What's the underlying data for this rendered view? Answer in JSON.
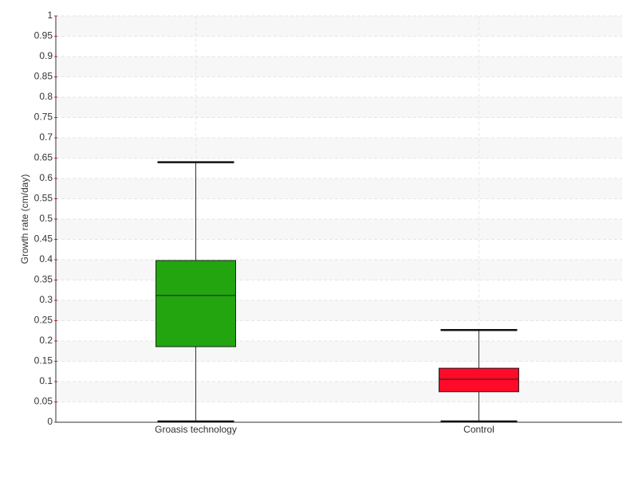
{
  "chart_data": {
    "type": "box",
    "y_label": "Growth rate (cm/day)",
    "categories": [
      "Groasis technology",
      "Control"
    ],
    "boxes": [
      {
        "min": 0,
        "q1": 0.186,
        "median": 0.312,
        "q3": 0.398,
        "max": 0.64,
        "color": "#22a50f"
      },
      {
        "min": 0,
        "q1": 0.075,
        "median": 0.106,
        "q3": 0.133,
        "max": 0.227,
        "color": "#ff0a28"
      }
    ],
    "ylim": [
      0,
      1
    ],
    "yticks": [
      0,
      0.05,
      0.1,
      0.15,
      0.2,
      0.25,
      0.3,
      0.35,
      0.4,
      0.45,
      0.5,
      0.55,
      0.6,
      0.65,
      0.7,
      0.75,
      0.8,
      0.85,
      0.9,
      0.95,
      1
    ],
    "grid": true
  }
}
